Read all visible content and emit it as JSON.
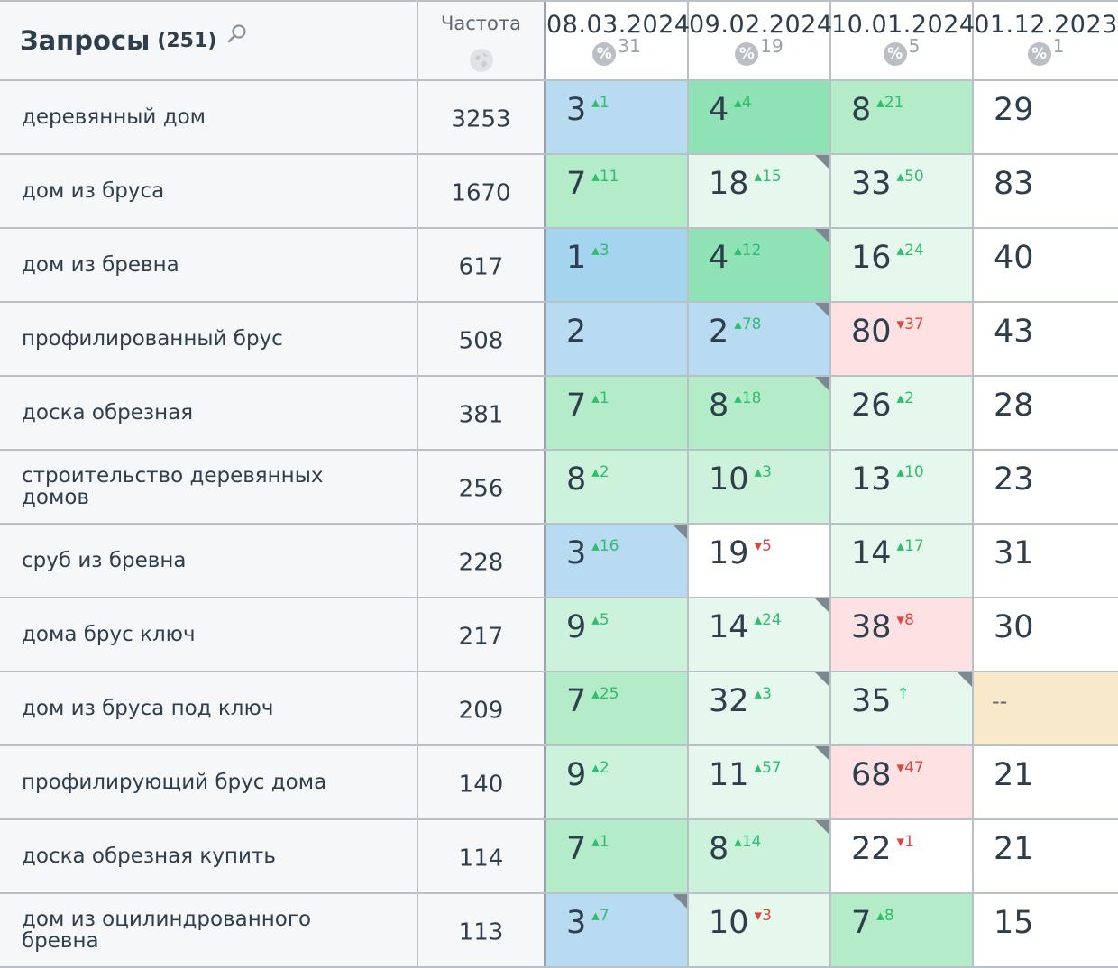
{
  "header": {
    "title": "Запросы",
    "count": "(251)",
    "search_icon": "search-icon",
    "frequency_label": "Частота",
    "frequency_icon": "globe-icon",
    "dates": [
      {
        "date": "08.03.2024",
        "pct": "31"
      },
      {
        "date": "09.02.2024",
        "pct": "19"
      },
      {
        "date": "10.01.2024",
        "pct": "5"
      },
      {
        "date": "01.12.2023",
        "pct": "1"
      }
    ],
    "pct_icon_label": "%"
  },
  "colors": {
    "blue": "#b8dbf2",
    "green_dark": "#8fe2b6",
    "green_light": "#cdf2dc",
    "red_light": "#fde1e3",
    "yellow": "#f7e9c9",
    "delta_up": "#2fbf6b",
    "delta_down": "#e0453f"
  },
  "rows": [
    {
      "query": "деревянный дом",
      "freq": "3253",
      "cells": [
        {
          "pos": "3",
          "delta": "1",
          "dir": "up",
          "bg": "blue"
        },
        {
          "pos": "4",
          "delta": "4",
          "dir": "up",
          "bg": "g1"
        },
        {
          "pos": "8",
          "delta": "21",
          "dir": "up",
          "bg": "g2"
        },
        {
          "pos": "29",
          "bg": "white"
        }
      ]
    },
    {
      "query": "дом из бруса",
      "freq": "1670",
      "cells": [
        {
          "pos": "7",
          "delta": "11",
          "dir": "up",
          "bg": "g2"
        },
        {
          "pos": "18",
          "delta": "15",
          "dir": "up",
          "bg": "g4",
          "corner": true
        },
        {
          "pos": "33",
          "delta": "50",
          "dir": "up",
          "bg": "g4"
        },
        {
          "pos": "83",
          "bg": "white"
        }
      ]
    },
    {
      "query": "дом из бревна",
      "freq": "617",
      "cells": [
        {
          "pos": "1",
          "delta": "3",
          "dir": "up",
          "bg": "blue2"
        },
        {
          "pos": "4",
          "delta": "12",
          "dir": "up",
          "bg": "g1",
          "corner": true
        },
        {
          "pos": "16",
          "delta": "24",
          "dir": "up",
          "bg": "g4"
        },
        {
          "pos": "40",
          "bg": "white"
        }
      ]
    },
    {
      "query": "профилированный брус",
      "freq": "508",
      "cells": [
        {
          "pos": "2",
          "bg": "blue"
        },
        {
          "pos": "2",
          "delta": "78",
          "dir": "up",
          "bg": "blue",
          "corner": true
        },
        {
          "pos": "80",
          "delta": "37",
          "dir": "down",
          "bg": "red"
        },
        {
          "pos": "43",
          "bg": "white"
        }
      ]
    },
    {
      "query": "доска обрезная",
      "freq": "381",
      "cells": [
        {
          "pos": "7",
          "delta": "1",
          "dir": "up",
          "bg": "g2"
        },
        {
          "pos": "8",
          "delta": "18",
          "dir": "up",
          "bg": "g2",
          "corner": true
        },
        {
          "pos": "26",
          "delta": "2",
          "dir": "up",
          "bg": "g4"
        },
        {
          "pos": "28",
          "bg": "white"
        }
      ]
    },
    {
      "query": "строительство деревянных домов",
      "freq": "256",
      "cells": [
        {
          "pos": "8",
          "delta": "2",
          "dir": "up",
          "bg": "g3"
        },
        {
          "pos": "10",
          "delta": "3",
          "dir": "up",
          "bg": "g3"
        },
        {
          "pos": "13",
          "delta": "10",
          "dir": "up",
          "bg": "g4"
        },
        {
          "pos": "23",
          "bg": "white"
        }
      ]
    },
    {
      "query": "сруб из бревна",
      "freq": "228",
      "cells": [
        {
          "pos": "3",
          "delta": "16",
          "dir": "up",
          "bg": "blue",
          "corner": true
        },
        {
          "pos": "19",
          "delta": "5",
          "dir": "down",
          "bg": "white"
        },
        {
          "pos": "14",
          "delta": "17",
          "dir": "up",
          "bg": "g4"
        },
        {
          "pos": "31",
          "bg": "white"
        }
      ]
    },
    {
      "query": "дома брус ключ",
      "freq": "217",
      "cells": [
        {
          "pos": "9",
          "delta": "5",
          "dir": "up",
          "bg": "g3"
        },
        {
          "pos": "14",
          "delta": "24",
          "dir": "up",
          "bg": "g4",
          "corner": true
        },
        {
          "pos": "38",
          "delta": "8",
          "dir": "down",
          "bg": "red"
        },
        {
          "pos": "30",
          "bg": "white"
        }
      ]
    },
    {
      "query": "дом из бруса под ключ",
      "freq": "209",
      "cells": [
        {
          "pos": "7",
          "delta": "25",
          "dir": "up",
          "bg": "g2"
        },
        {
          "pos": "32",
          "delta": "3",
          "dir": "up",
          "bg": "g4",
          "corner": true
        },
        {
          "pos": "35",
          "delta": "↑",
          "dir": "up",
          "bg": "g4",
          "corner": true,
          "plain": true
        },
        {
          "pos": "--",
          "bg": "yellow",
          "dash": true
        }
      ]
    },
    {
      "query": "профилирующий брус дома",
      "freq": "140",
      "cells": [
        {
          "pos": "9",
          "delta": "2",
          "dir": "up",
          "bg": "g3"
        },
        {
          "pos": "11",
          "delta": "57",
          "dir": "up",
          "bg": "g4",
          "corner": true
        },
        {
          "pos": "68",
          "delta": "47",
          "dir": "down",
          "bg": "red"
        },
        {
          "pos": "21",
          "bg": "white"
        }
      ]
    },
    {
      "query": "доска обрезная купить",
      "freq": "114",
      "cells": [
        {
          "pos": "7",
          "delta": "1",
          "dir": "up",
          "bg": "g2"
        },
        {
          "pos": "8",
          "delta": "14",
          "dir": "up",
          "bg": "g3",
          "corner": true
        },
        {
          "pos": "22",
          "delta": "1",
          "dir": "down",
          "bg": "white"
        },
        {
          "pos": "21",
          "bg": "white"
        }
      ]
    },
    {
      "query": "дом из оцилиндрованного бревна",
      "freq": "113",
      "cells": [
        {
          "pos": "3",
          "delta": "7",
          "dir": "up",
          "bg": "blue",
          "corner": true
        },
        {
          "pos": "10",
          "delta": "3",
          "dir": "down",
          "bg": "g4"
        },
        {
          "pos": "7",
          "delta": "8",
          "dir": "up",
          "bg": "g2"
        },
        {
          "pos": "15",
          "bg": "white"
        }
      ]
    }
  ]
}
